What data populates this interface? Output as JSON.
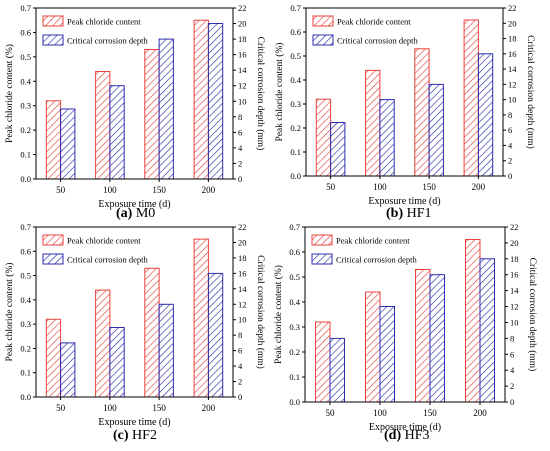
{
  "colors": {
    "chloride": "#e8413c",
    "corrosion": "#2d2dae",
    "axis": "#000000"
  },
  "chart_data": [
    {
      "type": "bar",
      "caption_letter": "(a)",
      "caption_name": "M0",
      "xlabel": "Exposure time (d)",
      "ylabel": "Peak chloride content (%)",
      "y2label": "Critical corrosion depth (mm)",
      "categories": [
        "50",
        "100",
        "150",
        "200"
      ],
      "ylim": [
        0,
        0.7
      ],
      "yticks": [
        "0.0",
        "0.1",
        "0.2",
        "0.3",
        "0.4",
        "0.5",
        "0.6",
        "0.7"
      ],
      "y2lim": [
        0,
        22
      ],
      "y2ticks": [
        "0",
        "2",
        "4",
        "6",
        "8",
        "10",
        "12",
        "14",
        "16",
        "18",
        "20",
        "22"
      ],
      "legend": "top-left",
      "series": [
        {
          "name": "Peak chloride content",
          "axis": "left",
          "values": [
            0.32,
            0.44,
            0.53,
            0.65
          ]
        },
        {
          "name": "Critical corrosion depth",
          "axis": "right",
          "values": [
            9,
            12,
            18,
            20
          ]
        }
      ]
    },
    {
      "type": "bar",
      "caption_letter": "(b)",
      "caption_name": "HF1",
      "xlabel": "Exposure time (d)",
      "ylabel": "Peak chloride content (%)",
      "y2label": "Critical corrosion depth (mm)",
      "categories": [
        "50",
        "100",
        "150",
        "200"
      ],
      "ylim": [
        0,
        0.7
      ],
      "yticks": [
        "0.0",
        "0.1",
        "0.2",
        "0.3",
        "0.4",
        "0.5",
        "0.6",
        "0.7"
      ],
      "y2lim": [
        0,
        22
      ],
      "y2ticks": [
        "0",
        "2",
        "4",
        "6",
        "8",
        "10",
        "12",
        "14",
        "16",
        "18",
        "20",
        "22"
      ],
      "legend": "top-left",
      "series": [
        {
          "name": "Peak chloride content",
          "axis": "left",
          "values": [
            0.32,
            0.44,
            0.53,
            0.65
          ]
        },
        {
          "name": "Critical corrosion depth",
          "axis": "right",
          "values": [
            7,
            10,
            12,
            16
          ]
        }
      ]
    },
    {
      "type": "bar",
      "caption_letter": "(c)",
      "caption_name": "HF2",
      "xlabel": "Exposure time (d)",
      "ylabel": "Peak chloride content (%)",
      "y2label": "Critical corrosion depth (mm)",
      "categories": [
        "50",
        "100",
        "150",
        "200"
      ],
      "ylim": [
        0,
        0.7
      ],
      "yticks": [
        "0.0",
        "0.1",
        "0.2",
        "0.3",
        "0.4",
        "0.5",
        "0.6",
        "0.7"
      ],
      "y2lim": [
        0,
        22
      ],
      "y2ticks": [
        "0",
        "2",
        "4",
        "6",
        "8",
        "10",
        "12",
        "14",
        "16",
        "18",
        "20",
        "22"
      ],
      "legend": "top-left",
      "series": [
        {
          "name": "Peak chloride content",
          "axis": "left",
          "values": [
            0.32,
            0.44,
            0.53,
            0.65
          ]
        },
        {
          "name": "Critical corrosion depth",
          "axis": "right",
          "values": [
            7,
            9,
            12,
            16
          ]
        }
      ]
    },
    {
      "type": "bar",
      "caption_letter": "(d)",
      "caption_name": "HF3",
      "xlabel": "Exposure time (d)",
      "ylabel": "Peak chloride content (%)",
      "y2label": "Critical corrosion depth (mm)",
      "categories": [
        "50",
        "100",
        "150",
        "200"
      ],
      "ylim": [
        0,
        0.7
      ],
      "yticks": [
        "0.0",
        "0.1",
        "0.2",
        "0.3",
        "0.4",
        "0.5",
        "0.6",
        "0.7"
      ],
      "y2lim": [
        0,
        22
      ],
      "y2ticks": [
        "0",
        "2",
        "4",
        "6",
        "8",
        "10",
        "12",
        "14",
        "16",
        "18",
        "20",
        "22"
      ],
      "legend": "top-left",
      "series": [
        {
          "name": "Peak chloride content",
          "axis": "left",
          "values": [
            0.32,
            0.44,
            0.53,
            0.65
          ]
        },
        {
          "name": "Critical corrosion depth",
          "axis": "right",
          "values": [
            8,
            12,
            16,
            18
          ]
        }
      ]
    }
  ]
}
